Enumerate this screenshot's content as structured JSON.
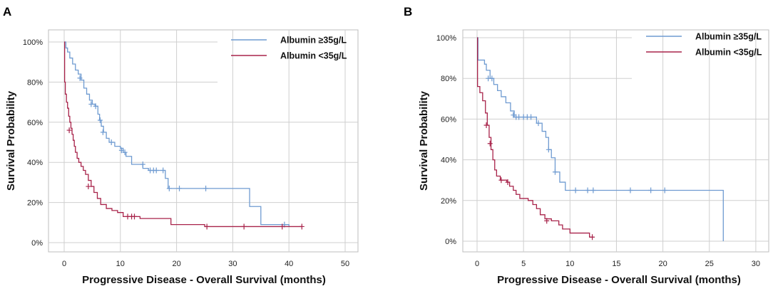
{
  "chart_data": [
    {
      "panel_label": "A",
      "type": "line",
      "subtype": "kaplan-meier",
      "xlabel": "Progressive Disease - Overall Survival (months)",
      "ylabel": "Survival Probability",
      "xlim": [
        0,
        50
      ],
      "ylim": [
        0,
        100
      ],
      "xticks": [
        0,
        10,
        20,
        30,
        40,
        50
      ],
      "xtick_labels": [
        "0",
        "10",
        "20",
        "30",
        "40",
        "50"
      ],
      "yticks": [
        0,
        20,
        40,
        60,
        80,
        100
      ],
      "ytick_labels": [
        "0%",
        "20%",
        "40%",
        "60%",
        "80%",
        "100%"
      ],
      "legend": "top-right",
      "series": [
        {
          "name": "Albumin ≥35g/L",
          "color": "#6f9bd1",
          "steps": [
            [
              0,
              100
            ],
            [
              0.3,
              97
            ],
            [
              0.6,
              95
            ],
            [
              1,
              92
            ],
            [
              1.5,
              89
            ],
            [
              2,
              86
            ],
            [
              2.5,
              84
            ],
            [
              3,
              81
            ],
            [
              3.5,
              77
            ],
            [
              4,
              74
            ],
            [
              4.5,
              71
            ],
            [
              5,
              69
            ],
            [
              5.5,
              68
            ],
            [
              6,
              64
            ],
            [
              6.3,
              61
            ],
            [
              6.6,
              58
            ],
            [
              7,
              55
            ],
            [
              7.5,
              52
            ],
            [
              8,
              50
            ],
            [
              9,
              48
            ],
            [
              10,
              47
            ],
            [
              10.5,
              45
            ],
            [
              11,
              43
            ],
            [
              12,
              39
            ],
            [
              14,
              37
            ],
            [
              15,
              36
            ],
            [
              18,
              32
            ],
            [
              18.5,
              27
            ],
            [
              33,
              18
            ],
            [
              35,
              9
            ],
            [
              40,
              8
            ]
          ],
          "end": 40,
          "censors": [
            [
              2.8,
              82
            ],
            [
              4.8,
              69
            ],
            [
              5.6,
              68
            ],
            [
              6.4,
              61
            ],
            [
              6.9,
              55
            ],
            [
              8.4,
              50
            ],
            [
              10.2,
              46
            ],
            [
              10.8,
              45
            ],
            [
              14,
              39
            ],
            [
              15.3,
              36
            ],
            [
              15.9,
              36
            ],
            [
              16.4,
              36
            ],
            [
              17.6,
              36
            ],
            [
              18.7,
              27
            ],
            [
              20.5,
              27
            ],
            [
              25.2,
              27
            ],
            [
              39.2,
              9
            ]
          ]
        },
        {
          "name": "Albumin <35g/L",
          "color": "#a8234a",
          "steps": [
            [
              0,
              100
            ],
            [
              0.08,
              80
            ],
            [
              0.2,
              74
            ],
            [
              0.4,
              70
            ],
            [
              0.6,
              67
            ],
            [
              0.8,
              63
            ],
            [
              1,
              60
            ],
            [
              1.2,
              57
            ],
            [
              1.4,
              54
            ],
            [
              1.6,
              51
            ],
            [
              1.8,
              48
            ],
            [
              2,
              45
            ],
            [
              2.3,
              42
            ],
            [
              2.6,
              40
            ],
            [
              3,
              38
            ],
            [
              3.4,
              36
            ],
            [
              3.8,
              34
            ],
            [
              4.3,
              31
            ],
            [
              4.8,
              28
            ],
            [
              5.3,
              25
            ],
            [
              5.9,
              22
            ],
            [
              6.5,
              19
            ],
            [
              7.5,
              17
            ],
            [
              8.5,
              16
            ],
            [
              9.5,
              15
            ],
            [
              10.5,
              13
            ],
            [
              13.5,
              12
            ],
            [
              19,
              9
            ],
            [
              25,
              8
            ]
          ],
          "end": 42.3,
          "censors": [
            [
              0.9,
              56
            ],
            [
              4.3,
              28
            ],
            [
              11.3,
              13
            ],
            [
              12,
              13
            ],
            [
              12.5,
              13
            ],
            [
              25.4,
              8
            ],
            [
              32,
              8
            ],
            [
              38.8,
              8
            ],
            [
              42.3,
              8
            ]
          ]
        }
      ]
    },
    {
      "panel_label": "B",
      "type": "line",
      "subtype": "kaplan-meier",
      "xlabel": "Progressive Disease - Overall Survival (months)",
      "ylabel": "Survival Probability",
      "xlim": [
        0,
        30
      ],
      "ylim": [
        0,
        100
      ],
      "xticks": [
        0,
        5,
        10,
        15,
        20,
        25,
        30
      ],
      "xtick_labels": [
        "0",
        "5",
        "10",
        "15",
        "20",
        "25",
        "30"
      ],
      "yticks": [
        0,
        20,
        40,
        60,
        80,
        100
      ],
      "ytick_labels": [
        "0%",
        "20%",
        "40%",
        "60%",
        "80%",
        "100%"
      ],
      "legend": "top-right",
      "series": [
        {
          "name": "Albumin ≥35g/L",
          "color": "#6f9bd1",
          "steps": [
            [
              0,
              100
            ],
            [
              0.1,
              89
            ],
            [
              0.8,
              87
            ],
            [
              1,
              84
            ],
            [
              1.4,
              80
            ],
            [
              1.8,
              77
            ],
            [
              2.2,
              74
            ],
            [
              2.6,
              71
            ],
            [
              3.1,
              68
            ],
            [
              3.6,
              64
            ],
            [
              4,
              61
            ],
            [
              6.4,
              58
            ],
            [
              7,
              54
            ],
            [
              7.4,
              51
            ],
            [
              7.7,
              45
            ],
            [
              8,
              41
            ],
            [
              8.4,
              34
            ],
            [
              8.9,
              29
            ],
            [
              9.5,
              25
            ],
            [
              26.5,
              0
            ]
          ],
          "end": 26.5,
          "censors": [
            [
              1.2,
              80
            ],
            [
              1.6,
              80
            ],
            [
              3.9,
              62
            ],
            [
              4.2,
              61
            ],
            [
              4.5,
              61
            ],
            [
              5,
              61
            ],
            [
              5.4,
              61
            ],
            [
              5.8,
              61
            ],
            [
              6.6,
              58
            ],
            [
              7.7,
              45
            ],
            [
              8.4,
              34
            ],
            [
              10.6,
              25
            ],
            [
              11.9,
              25
            ],
            [
              12.5,
              25
            ],
            [
              16.5,
              25
            ],
            [
              18.7,
              25
            ],
            [
              20.2,
              25
            ]
          ]
        },
        {
          "name": "Albumin <35g/L",
          "color": "#a8234a",
          "steps": [
            [
              0,
              100
            ],
            [
              0.05,
              76
            ],
            [
              0.3,
              73
            ],
            [
              0.6,
              69
            ],
            [
              0.9,
              63
            ],
            [
              1.1,
              57
            ],
            [
              1.3,
              51
            ],
            [
              1.5,
              45
            ],
            [
              1.7,
              40
            ],
            [
              1.9,
              35
            ],
            [
              2.1,
              32
            ],
            [
              2.5,
              30
            ],
            [
              3.2,
              29
            ],
            [
              3.5,
              27
            ],
            [
              3.9,
              25
            ],
            [
              4.2,
              23
            ],
            [
              4.6,
              21
            ],
            [
              5.5,
              20
            ],
            [
              6,
              18
            ],
            [
              6.4,
              16
            ],
            [
              6.8,
              13
            ],
            [
              7.3,
              11
            ],
            [
              8,
              10
            ],
            [
              8.8,
              8
            ],
            [
              9.2,
              6
            ],
            [
              10,
              4
            ],
            [
              12.1,
              2
            ]
          ],
          "end": 12.5,
          "censors": [
            [
              1,
              57
            ],
            [
              1.4,
              48
            ],
            [
              2.6,
              30
            ],
            [
              3.3,
              29
            ],
            [
              7.5,
              10
            ],
            [
              12.4,
              2
            ]
          ]
        }
      ]
    }
  ]
}
